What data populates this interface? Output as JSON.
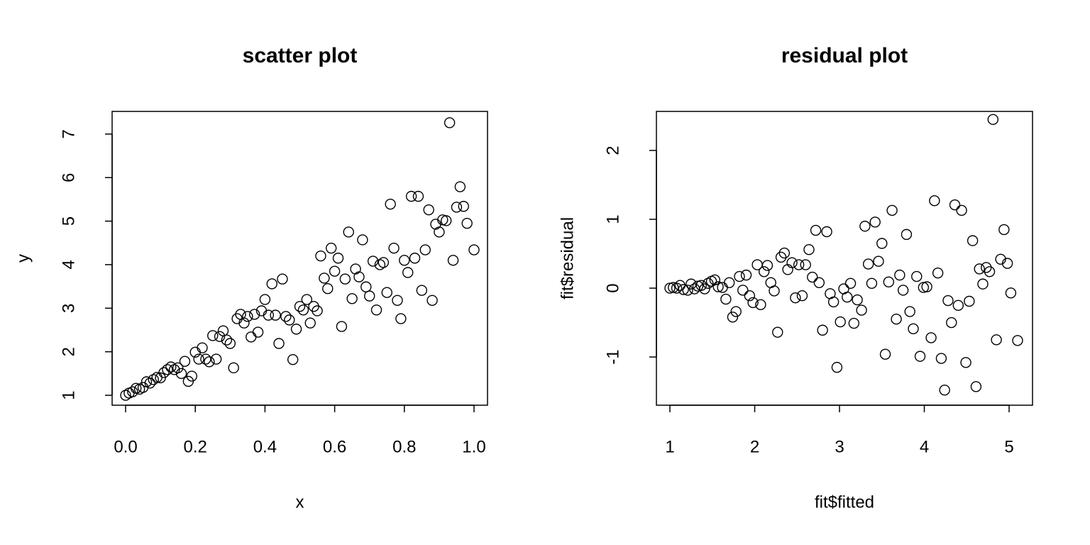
{
  "chart_data": [
    {
      "type": "scatter",
      "title": "scatter plot",
      "x_label": "x",
      "y_label": "y",
      "color": "#000000",
      "x": [
        0.0,
        0.01,
        0.02,
        0.03,
        0.04,
        0.05,
        0.06,
        0.07,
        0.08,
        0.09,
        0.1,
        0.11,
        0.12,
        0.13,
        0.14,
        0.15,
        0.16,
        0.17,
        0.18,
        0.19,
        0.2,
        0.21,
        0.22,
        0.23,
        0.24,
        0.25,
        0.26,
        0.27,
        0.28,
        0.29,
        0.3,
        0.31,
        0.32,
        0.33,
        0.34,
        0.35,
        0.36,
        0.37,
        0.38,
        0.39,
        0.4,
        0.41,
        0.42,
        0.43,
        0.44,
        0.45,
        0.46,
        0.47,
        0.48,
        0.49,
        0.5,
        0.51,
        0.52,
        0.53,
        0.54,
        0.55,
        0.56,
        0.57,
        0.58,
        0.59,
        0.6,
        0.61,
        0.62,
        0.63,
        0.64,
        0.65,
        0.66,
        0.67,
        0.68,
        0.69,
        0.7,
        0.71,
        0.72,
        0.73,
        0.74,
        0.75,
        0.76,
        0.77,
        0.78,
        0.79,
        0.8,
        0.81,
        0.82,
        0.83,
        0.84,
        0.85,
        0.86,
        0.87,
        0.88,
        0.89,
        0.9,
        0.91,
        0.92,
        0.93,
        0.94,
        0.95,
        0.96,
        0.97,
        0.98,
        1.0
      ],
      "y": [
        1.0,
        1.05,
        1.08,
        1.16,
        1.14,
        1.18,
        1.31,
        1.28,
        1.36,
        1.41,
        1.4,
        1.52,
        1.59,
        1.65,
        1.59,
        1.63,
        1.5,
        1.78,
        1.32,
        1.44,
        1.99,
        1.83,
        2.09,
        1.83,
        1.77,
        2.37,
        1.83,
        2.35,
        2.48,
        2.27,
        2.19,
        1.63,
        2.76,
        2.86,
        2.66,
        2.81,
        2.34,
        2.86,
        2.45,
        2.94,
        3.2,
        2.84,
        3.56,
        2.84,
        2.19,
        3.67,
        2.81,
        2.73,
        1.82,
        2.52,
        3.04,
        2.96,
        3.2,
        2.66,
        3.04,
        2.94,
        4.2,
        3.69,
        3.45,
        4.38,
        3.85,
        4.15,
        2.58,
        3.67,
        4.75,
        3.22,
        3.9,
        3.72,
        4.57,
        3.49,
        3.28,
        4.08,
        2.96,
        4.0,
        4.05,
        3.36,
        5.39,
        4.38,
        3.18,
        2.76,
        4.1,
        3.82,
        5.57,
        4.15,
        5.57,
        3.41,
        4.34,
        5.26,
        3.18,
        4.93,
        4.75,
        5.03,
        5.01,
        7.26,
        4.1,
        5.32,
        5.79,
        5.34,
        4.95,
        4.34
      ],
      "xlim": [
        -0.0387,
        1.0387
      ],
      "ylim": [
        0.772,
        7.52
      ],
      "xticks": [
        {
          "value": 0,
          "label": "0.0"
        },
        {
          "value": 0.2,
          "label": "0.2"
        },
        {
          "value": 0.4,
          "label": "0.4"
        },
        {
          "value": 0.6,
          "label": "0.6"
        },
        {
          "value": 0.8,
          "label": "0.8"
        },
        {
          "value": 1,
          "label": "1.0"
        }
      ],
      "yticks": [
        1,
        2,
        3,
        4,
        5,
        6,
        7
      ]
    },
    {
      "type": "scatter",
      "title": "residual plot",
      "x_label": "fit$fitted",
      "y_label": "fit$residual",
      "color": "#000000",
      "x": [
        1.0,
        1.04,
        1.08,
        1.12,
        1.16,
        1.21,
        1.25,
        1.29,
        1.33,
        1.37,
        1.41,
        1.45,
        1.49,
        1.53,
        1.57,
        1.62,
        1.66,
        1.7,
        1.74,
        1.78,
        1.82,
        1.86,
        1.9,
        1.94,
        1.98,
        2.03,
        2.07,
        2.11,
        2.15,
        2.19,
        2.23,
        2.27,
        2.31,
        2.35,
        2.39,
        2.44,
        2.48,
        2.52,
        2.56,
        2.6,
        2.64,
        2.68,
        2.72,
        2.76,
        2.8,
        2.85,
        2.89,
        2.93,
        2.97,
        3.01,
        3.05,
        3.09,
        3.13,
        3.17,
        3.21,
        3.26,
        3.3,
        3.34,
        3.38,
        3.42,
        3.46,
        3.5,
        3.54,
        3.58,
        3.62,
        3.67,
        3.71,
        3.75,
        3.79,
        3.83,
        3.87,
        3.91,
        3.95,
        3.99,
        4.03,
        4.08,
        4.12,
        4.16,
        4.2,
        4.24,
        4.28,
        4.32,
        4.36,
        4.4,
        4.44,
        4.49,
        4.53,
        4.57,
        4.61,
        4.65,
        4.69,
        4.73,
        4.77,
        4.81,
        4.85,
        4.9,
        4.94,
        4.98,
        5.02,
        5.1
      ],
      "y": [
        0.0,
        0.01,
        0.0,
        0.04,
        -0.02,
        -0.03,
        0.06,
        -0.01,
        0.03,
        0.04,
        -0.01,
        0.07,
        0.1,
        0.12,
        0.02,
        0.01,
        -0.16,
        0.08,
        -0.42,
        -0.34,
        0.17,
        -0.03,
        0.19,
        -0.11,
        -0.21,
        0.34,
        -0.24,
        0.24,
        0.33,
        0.08,
        -0.04,
        -0.64,
        0.45,
        0.51,
        0.27,
        0.37,
        -0.14,
        0.34,
        -0.11,
        0.34,
        0.56,
        0.16,
        0.84,
        0.08,
        -0.61,
        0.82,
        -0.08,
        -0.2,
        -1.15,
        -0.49,
        -0.01,
        -0.13,
        0.07,
        -0.51,
        -0.17,
        -0.32,
        0.9,
        0.35,
        0.07,
        0.96,
        0.39,
        0.65,
        -0.96,
        0.09,
        1.13,
        -0.45,
        0.19,
        -0.03,
        0.78,
        -0.34,
        -0.59,
        0.17,
        -0.99,
        0.01,
        0.02,
        -0.72,
        1.27,
        0.22,
        -1.02,
        -1.48,
        -0.18,
        -0.5,
        1.21,
        -0.25,
        1.13,
        -1.08,
        -0.19,
        0.69,
        -1.43,
        0.28,
        0.06,
        0.3,
        0.24,
        2.45,
        -0.75,
        0.42,
        0.85,
        0.36,
        -0.07,
        -0.76
      ],
      "xlim": [
        0.841,
        5.276
      ],
      "ylim": [
        -1.7,
        2.567
      ],
      "xticks": [
        1,
        2,
        3,
        4,
        5
      ],
      "yticks": [
        -1,
        0,
        1,
        2
      ]
    }
  ]
}
